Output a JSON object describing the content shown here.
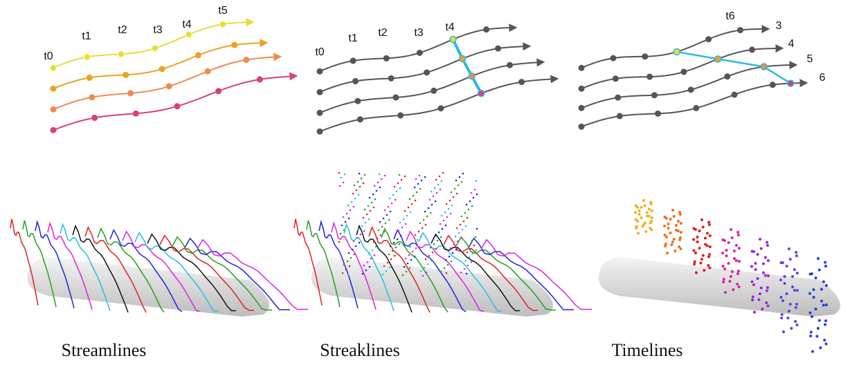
{
  "panels": [
    {
      "caption": "Streamlines",
      "labels": [
        "t0",
        "t1",
        "t2",
        "t3",
        "t4",
        "t5"
      ]
    },
    {
      "caption": "Streaklines",
      "labels": [
        "t0",
        "t1",
        "t2",
        "t3",
        "t4"
      ]
    },
    {
      "caption": "Timelines",
      "labels": [
        "t6",
        "3",
        "4",
        "5",
        "6"
      ]
    }
  ]
}
